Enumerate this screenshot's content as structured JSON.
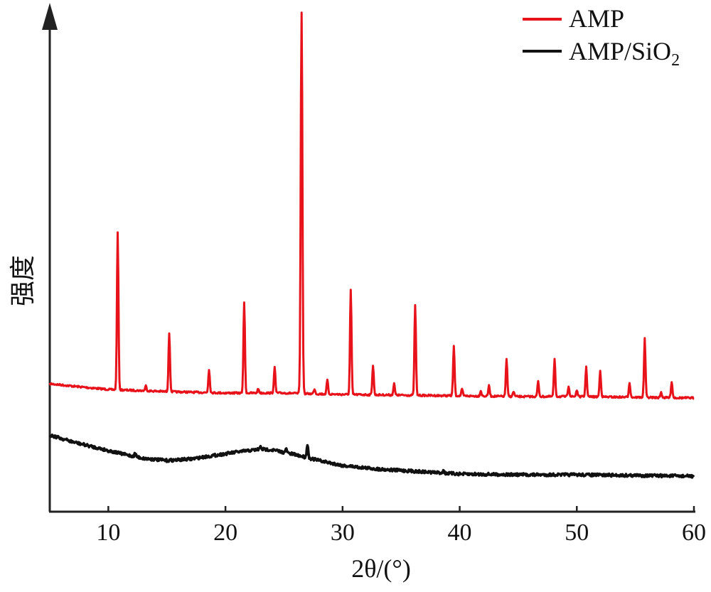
{
  "chart_data": {
    "type": "line",
    "xlabel": "2θ/(°)",
    "ylabel": "强度",
    "xlim": [
      5,
      60
    ],
    "x_ticks": [
      10,
      20,
      30,
      40,
      50,
      60
    ],
    "y_ticks_shown": false,
    "legend_placement": "top-right",
    "series": [
      {
        "name": "AMP",
        "color": "#e8121b",
        "baseline": [
          [
            5,
            540
          ],
          [
            8,
            545
          ],
          [
            10,
            548
          ],
          [
            15,
            551
          ],
          [
            20,
            553
          ],
          [
            25,
            553
          ],
          [
            27,
            554
          ],
          [
            30,
            555
          ],
          [
            35,
            556
          ],
          [
            40,
            557
          ],
          [
            45,
            558
          ],
          [
            50,
            558
          ],
          [
            55,
            559
          ],
          [
            60,
            560
          ]
        ],
        "peaks": [
          {
            "x": 10.8,
            "top": 328
          },
          {
            "x": 13.2,
            "top": 543
          },
          {
            "x": 15.2,
            "top": 468
          },
          {
            "x": 18.6,
            "top": 520
          },
          {
            "x": 21.6,
            "top": 425
          },
          {
            "x": 22.8,
            "top": 547
          },
          {
            "x": 24.2,
            "top": 517
          },
          {
            "x": 26.5,
            "top": 17
          },
          {
            "x": 27.6,
            "top": 547
          },
          {
            "x": 28.7,
            "top": 535
          },
          {
            "x": 30.7,
            "top": 408
          },
          {
            "x": 32.6,
            "top": 514
          },
          {
            "x": 34.4,
            "top": 540
          },
          {
            "x": 36.2,
            "top": 429
          },
          {
            "x": 39.5,
            "top": 487
          },
          {
            "x": 40.2,
            "top": 548
          },
          {
            "x": 41.8,
            "top": 550
          },
          {
            "x": 42.5,
            "top": 543
          },
          {
            "x": 44.0,
            "top": 506
          },
          {
            "x": 44.6,
            "top": 551
          },
          {
            "x": 46.7,
            "top": 537
          },
          {
            "x": 48.1,
            "top": 506
          },
          {
            "x": 49.3,
            "top": 543
          },
          {
            "x": 50.0,
            "top": 549
          },
          {
            "x": 50.8,
            "top": 517
          },
          {
            "x": 52.0,
            "top": 522
          },
          {
            "x": 54.5,
            "top": 538
          },
          {
            "x": 55.8,
            "top": 477
          },
          {
            "x": 57.2,
            "top": 552
          },
          {
            "x": 58.1,
            "top": 537
          }
        ]
      },
      {
        "name": "AMP/SiO2",
        "color": "#111111",
        "baseline": [
          [
            5,
            612
          ],
          [
            7,
            622
          ],
          [
            9,
            630
          ],
          [
            11,
            638
          ],
          [
            13,
            645
          ],
          [
            15,
            648
          ],
          [
            17,
            646
          ],
          [
            19,
            641
          ],
          [
            21,
            636
          ],
          [
            23,
            632
          ],
          [
            24,
            633
          ],
          [
            26,
            640
          ],
          [
            28,
            648
          ],
          [
            30,
            655
          ],
          [
            33,
            660
          ],
          [
            36,
            663
          ],
          [
            40,
            667
          ],
          [
            45,
            668
          ],
          [
            50,
            668
          ],
          [
            55,
            669
          ],
          [
            60,
            670
          ]
        ],
        "peaks": [
          {
            "x": 12.3,
            "top": 638
          },
          {
            "x": 23.0,
            "top": 629
          },
          {
            "x": 25.2,
            "top": 632
          },
          {
            "x": 27.0,
            "top": 625
          },
          {
            "x": 38.6,
            "top": 662
          }
        ]
      }
    ]
  },
  "legend": {
    "items": [
      {
        "label_main": "AMP/SiO",
        "label_sub": "2"
      }
    ],
    "first_label": "AMP"
  }
}
